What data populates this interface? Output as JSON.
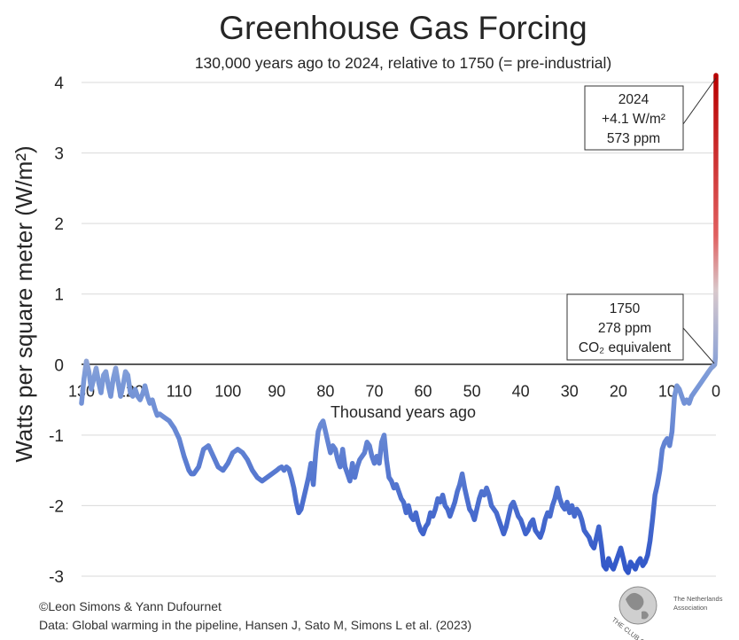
{
  "chart_data": {
    "type": "line",
    "title": "Greenhouse Gas Forcing",
    "subtitle": "130,000 years ago to 2024, relative to 1750 (= pre-industrial)",
    "xlabel": "Thousand years ago",
    "ylabel": "Watts per square meter (W/m²)",
    "xlim": [
      130,
      0
    ],
    "ylim": [
      -3,
      4
    ],
    "x_ticks": [
      "130",
      "120",
      "110",
      "100",
      "90",
      "80",
      "70",
      "60",
      "50",
      "40",
      "30",
      "20",
      "10",
      "0"
    ],
    "y_ticks": [
      "4",
      "3",
      "2",
      "1",
      "0",
      "-1",
      "-2",
      "-3"
    ],
    "grid": "horizontal",
    "colors": {
      "low": "#3a5fcd",
      "mid": "#d4c6c8",
      "high": "#c00000"
    },
    "series": [
      {
        "x": [
          130,
          129.5,
          129,
          128.5,
          128,
          127.5,
          127,
          126.5,
          126,
          125.5,
          125,
          124.5,
          124,
          123.5,
          123,
          122.5,
          122,
          121.5,
          121,
          120.5,
          120,
          119.5,
          119,
          118.5,
          118,
          117.5,
          117,
          116.5,
          116,
          115.5,
          115,
          114.5,
          114,
          113,
          112,
          111,
          110,
          109,
          108,
          107.5,
          107,
          106,
          105,
          104,
          103,
          102,
          101,
          100,
          99,
          98,
          97,
          96,
          95,
          94,
          93,
          92,
          91,
          90,
          89.5,
          89,
          88.5,
          88,
          87.5,
          87,
          86.5,
          86,
          85.5,
          85,
          84.5,
          84,
          83.5,
          83,
          82.5,
          82,
          81.5,
          81,
          80.5,
          80,
          79.5,
          79,
          78.5,
          78,
          77.5,
          77,
          76.5,
          76,
          75.5,
          75,
          74.5,
          74,
          73.5,
          73,
          72.5,
          72,
          71.5,
          71,
          70.5,
          70,
          69.5,
          69,
          68.5,
          68,
          67.5,
          67,
          66.5,
          66,
          65.5,
          65,
          64.5,
          64,
          63.5,
          63,
          62.5,
          62,
          61.5,
          61,
          60.5,
          60,
          59.5,
          59,
          58.5,
          58,
          57.5,
          57,
          56.5,
          56,
          55.5,
          55,
          54.5,
          54,
          53.5,
          53,
          52.5,
          52,
          51.5,
          51,
          50.5,
          50,
          49.5,
          49,
          48.5,
          48,
          47.5,
          47,
          46.5,
          46,
          45.5,
          45,
          44.5,
          44,
          43.5,
          43,
          42.5,
          42,
          41.5,
          41,
          40.5,
          40,
          39.5,
          39,
          38.5,
          38,
          37.5,
          37,
          36.5,
          36,
          35.5,
          35,
          34.5,
          34,
          33.5,
          33,
          32.5,
          32,
          31.5,
          31,
          30.5,
          30,
          29.5,
          29,
          28.5,
          28,
          27.5,
          27,
          26.5,
          26,
          25.5,
          25,
          24.5,
          24,
          23.5,
          23,
          22.5,
          22,
          21.5,
          21,
          20.5,
          20,
          19.5,
          19,
          18.5,
          18,
          17.5,
          17,
          16.5,
          16,
          15.5,
          15,
          14.5,
          14,
          13.5,
          13,
          12.5,
          12,
          11.5,
          11,
          10.5,
          10,
          9.5,
          9,
          8.5,
          8,
          7.5,
          7,
          6.5,
          6,
          5.5,
          5,
          4.5,
          4,
          3.5,
          3,
          2.5,
          2,
          1.5,
          1,
          0.5,
          0.25,
          0.1,
          0.03,
          0.01,
          0
        ],
        "y": [
          -0.55,
          -0.2,
          0.05,
          -0.1,
          -0.35,
          -0.2,
          -0.05,
          -0.25,
          -0.4,
          -0.15,
          -0.1,
          -0.3,
          -0.45,
          -0.2,
          -0.05,
          -0.25,
          -0.45,
          -0.3,
          -0.1,
          -0.15,
          -0.4,
          -0.45,
          -0.35,
          -0.45,
          -0.5,
          -0.42,
          -0.3,
          -0.45,
          -0.55,
          -0.5,
          -0.62,
          -0.72,
          -0.7,
          -0.75,
          -0.8,
          -0.9,
          -1.05,
          -1.3,
          -1.5,
          -1.55,
          -1.55,
          -1.45,
          -1.2,
          -1.15,
          -1.3,
          -1.45,
          -1.5,
          -1.4,
          -1.25,
          -1.2,
          -1.25,
          -1.35,
          -1.5,
          -1.6,
          -1.65,
          -1.6,
          -1.55,
          -1.5,
          -1.47,
          -1.45,
          -1.5,
          -1.45,
          -1.48,
          -1.6,
          -1.75,
          -1.95,
          -2.1,
          -2.05,
          -1.9,
          -1.75,
          -1.6,
          -1.4,
          -1.7,
          -1.25,
          -0.95,
          -0.85,
          -0.8,
          -0.95,
          -1.1,
          -1.25,
          -1.15,
          -1.2,
          -1.35,
          -1.45,
          -1.2,
          -1.45,
          -1.55,
          -1.65,
          -1.4,
          -1.6,
          -1.45,
          -1.35,
          -1.3,
          -1.25,
          -1.1,
          -1.15,
          -1.3,
          -1.4,
          -1.3,
          -1.4,
          -1.1,
          -1.0,
          -1.35,
          -1.6,
          -1.65,
          -1.75,
          -1.7,
          -1.8,
          -1.9,
          -1.95,
          -2.1,
          -2.0,
          -2.15,
          -2.2,
          -2.1,
          -2.25,
          -2.35,
          -2.4,
          -2.3,
          -2.25,
          -2.1,
          -2.15,
          -2.05,
          -1.9,
          -1.95,
          -1.85,
          -2.0,
          -2.05,
          -2.15,
          -2.05,
          -1.95,
          -1.8,
          -1.7,
          -1.55,
          -1.75,
          -1.9,
          -2.05,
          -2.1,
          -2.2,
          -2.05,
          -1.9,
          -1.8,
          -1.85,
          -1.75,
          -1.85,
          -2.0,
          -2.05,
          -2.1,
          -2.2,
          -2.3,
          -2.4,
          -2.3,
          -2.15,
          -2.0,
          -1.95,
          -2.05,
          -2.15,
          -2.2,
          -2.3,
          -2.4,
          -2.35,
          -2.25,
          -2.2,
          -2.35,
          -2.4,
          -2.45,
          -2.35,
          -2.2,
          -2.1,
          -2.15,
          -2.0,
          -1.9,
          -1.75,
          -1.9,
          -2.0,
          -2.05,
          -1.95,
          -2.1,
          -2.0,
          -2.15,
          -2.05,
          -2.1,
          -2.2,
          -2.35,
          -2.4,
          -2.45,
          -2.55,
          -2.6,
          -2.45,
          -2.3,
          -2.55,
          -2.85,
          -2.9,
          -2.75,
          -2.85,
          -2.9,
          -2.8,
          -2.7,
          -2.6,
          -2.75,
          -2.9,
          -2.95,
          -2.8,
          -2.85,
          -2.9,
          -2.8,
          -2.75,
          -2.85,
          -2.8,
          -2.7,
          -2.5,
          -2.2,
          -1.85,
          -1.7,
          -1.5,
          -1.2,
          -1.1,
          -1.05,
          -1.15,
          -0.95,
          -0.45,
          -0.3,
          -0.35,
          -0.45,
          -0.55,
          -0.5,
          -0.55,
          -0.45,
          -0.4,
          -0.35,
          -0.3,
          -0.25,
          -0.2,
          -0.15,
          -0.1,
          -0.05,
          -0.02,
          0.0,
          0.1,
          0.5,
          1.5,
          4.1
        ]
      }
    ],
    "annotations": [
      {
        "year": "2024",
        "value": "+4.1 W/m²",
        "ppm": "573 ppm"
      },
      {
        "year": "1750",
        "ppm": "278 ppm",
        "note": "CO₂ equivalent"
      }
    ]
  },
  "credits": {
    "line1": "©Leon Simons & Yann Dufournet",
    "line2": "Data: Global warming in the pipeline, Hansen J, Sato M, Simons L et al. (2023)"
  },
  "logo": {
    "name": "THE CLUB OF ROME",
    "assoc1": "The Netherlands",
    "assoc2": "Association"
  }
}
